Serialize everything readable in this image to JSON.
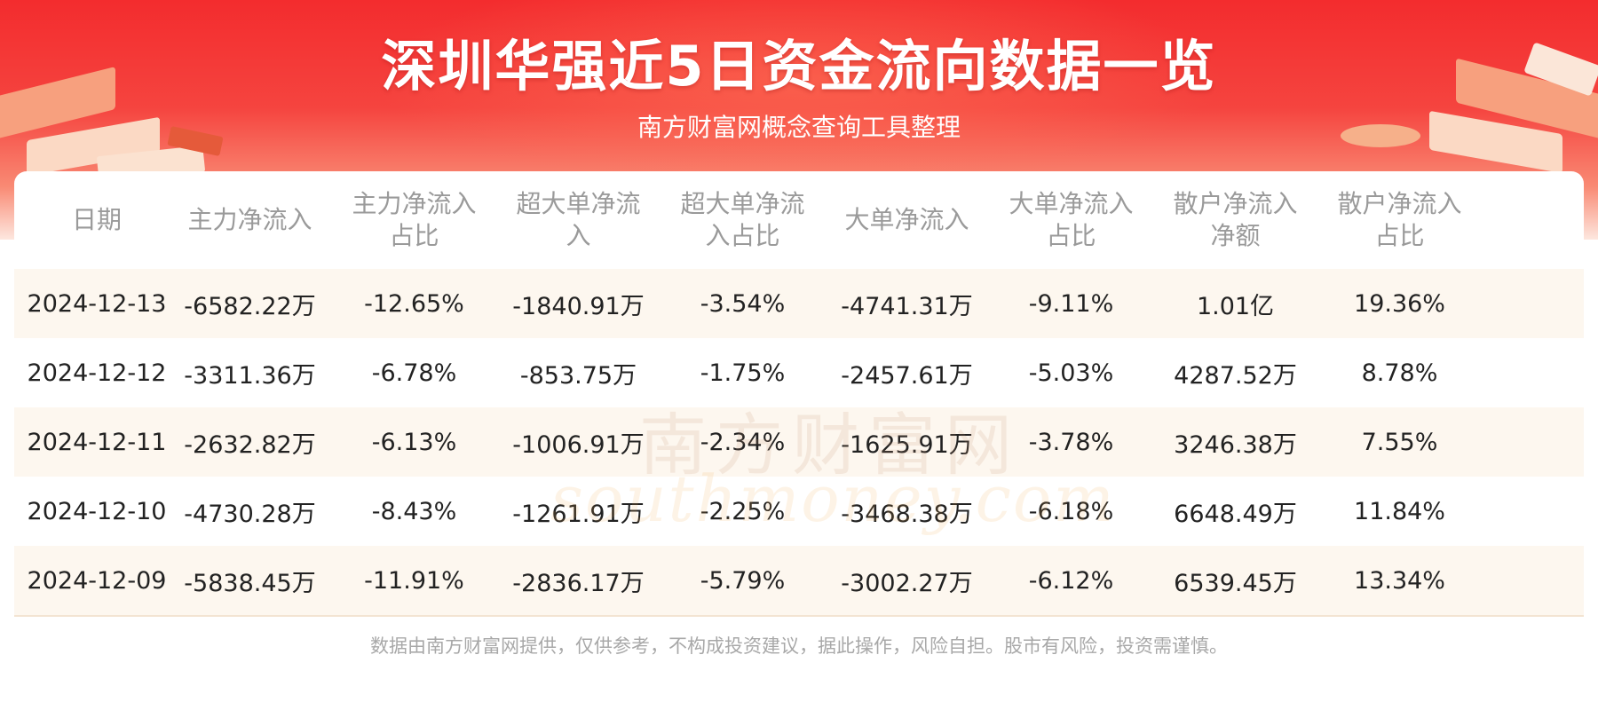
{
  "header": {
    "title": "深圳华强近5日资金流向数据一览",
    "subtitle": "南方财富网概念查询工具整理"
  },
  "table": {
    "columns": [
      "日期",
      "主力净流入",
      "主力净流入\n占比",
      "超大单净流\n入",
      "超大单净流\n入占比",
      "大单净流入",
      "大单净流入\n占比",
      "散户净流入\n净额",
      "散户净流入\n占比"
    ],
    "rows": [
      [
        "2024-12-13",
        "-6582.22万",
        "-12.65%",
        "-1840.91万",
        "-3.54%",
        "-4741.31万",
        "-9.11%",
        "1.01亿",
        "19.36%"
      ],
      [
        "2024-12-12",
        "-3311.36万",
        "-6.78%",
        "-853.75万",
        "-1.75%",
        "-2457.61万",
        "-5.03%",
        "4287.52万",
        "8.78%"
      ],
      [
        "2024-12-11",
        "-2632.82万",
        "-6.13%",
        "-1006.91万",
        "-2.34%",
        "-1625.91万",
        "-3.78%",
        "3246.38万",
        "7.55%"
      ],
      [
        "2024-12-10",
        "-4730.28万",
        "-8.43%",
        "-1261.91万",
        "-2.25%",
        "-3468.38万",
        "-6.18%",
        "6648.49万",
        "11.84%"
      ],
      [
        "2024-12-09",
        "-5838.45万",
        "-11.91%",
        "-2836.17万",
        "-5.79%",
        "-3002.27万",
        "-6.12%",
        "6539.45万",
        "13.34%"
      ]
    ]
  },
  "watermark": {
    "cn": "南方财富网",
    "en": "southmoney.com"
  },
  "footer": {
    "disclaimer": "数据由南方财富网提供，仅供参考，不构成投资建议，据此操作，风险自担。股市有风险，投资需谨慎。"
  }
}
